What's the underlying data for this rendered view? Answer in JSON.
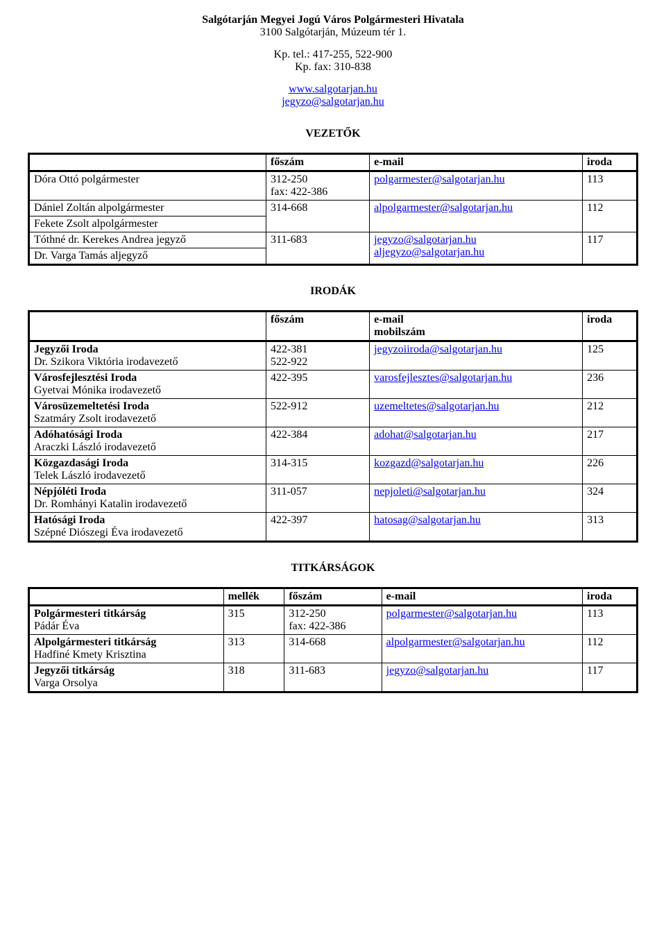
{
  "header": {
    "title": "Salgótarján Megyei Jogú Város Polgármesteri Hivatala",
    "address": "3100 Salgótarján, Múzeum tér 1.",
    "tel": "Kp. tel.: 417-255, 522-900",
    "fax": "Kp. fax: 310-838",
    "www": "www.salgotarjan.hu",
    "email": "jegyzo@salgotarjan.hu"
  },
  "sections": {
    "leaders": "VEZETŐK",
    "offices": "IRODÁK",
    "secretariats": "TITKÁRSÁGOK"
  },
  "labels": {
    "foszam": "főszám",
    "email": "e-mail",
    "iroda": "iroda",
    "mobil": "mobilszám",
    "mellek": "mellék"
  },
  "leaders": {
    "row1": {
      "name": "Dóra Ottó polgármester",
      "foszam1": "312-250",
      "foszam2": "fax: 422-386",
      "email": "polgarmester@salgotarjan.hu",
      "iroda": "113"
    },
    "row2a": "Dániel Zoltán alpolgármester",
    "row2b": "Fekete Zsolt alpolgármester",
    "row2": {
      "foszam": "314-668",
      "email": "alpolgarmester@salgotarjan.hu",
      "iroda": "112"
    },
    "row3a": "Tóthné dr. Kerekes Andrea jegyző",
    "row3b": "Dr. Varga Tamás  aljegyző",
    "row3": {
      "foszam": "311-683",
      "email1": "jegyzo@salgotarjan.hu",
      "email2": "aljegyzo@salgotarjan.hu",
      "iroda": "117"
    }
  },
  "offices": [
    {
      "name1": "Jegyzői Iroda",
      "name2": "Dr. Szikora Viktória irodavezető",
      "foszam1": "422-381",
      "foszam2": "522-922",
      "email": "jegyzoiiroda@salgotarjan.hu",
      "iroda": "125"
    },
    {
      "name1": "Városfejlesztési Iroda",
      "name2": "Gyetvai Mónika irodavezető",
      "foszam1": "422-395",
      "foszam2": "",
      "email": "varosfejlesztes@salgotarjan.hu",
      "iroda": "236"
    },
    {
      "name1": "Városüzemeltetési Iroda",
      "name2": "Szatmáry Zsolt irodavezető",
      "foszam1": "522-912",
      "foszam2": "",
      "email": "uzemeltetes@salgotarjan.hu",
      "iroda": "212"
    },
    {
      "name1": "Adóhatósági Iroda",
      "name2": "Araczki László irodavezető",
      "foszam1": "422-384",
      "foszam2": "",
      "email": "adohat@salgotarjan.hu",
      "iroda": "217"
    },
    {
      "name1": "Közgazdasági Iroda",
      "name2": "Telek László irodavezető",
      "foszam1": "314-315",
      "foszam2": "",
      "email": "kozgazd@salgotarjan.hu",
      "iroda": "226"
    },
    {
      "name1": "Népjóléti Iroda",
      "name2": "Dr. Romhányi Katalin irodavezető",
      "foszam1": "311-057",
      "foszam2": "",
      "email": "nepjoleti@salgotarjan.hu",
      "iroda": "324"
    },
    {
      "name1": "Hatósági Iroda",
      "name2": "Szépné Diószegi Éva irodavezető",
      "foszam1": "422-397",
      "foszam2": "",
      "email": "hatosag@salgotarjan.hu",
      "iroda": "313"
    }
  ],
  "secretariats": [
    {
      "name1": "Polgármesteri titkárság",
      "name2": "Pádár Éva",
      "mellek": "315",
      "foszam1": "312-250",
      "foszam2": "fax: 422-386",
      "email": "polgarmester@salgotarjan.hu",
      "iroda": "113"
    },
    {
      "name1": "Alpolgármesteri titkárság",
      "name2": "Hadfiné Kmety Krisztina",
      "mellek": "313",
      "foszam1": "314-668",
      "foszam2": "",
      "email": "alpolgarmester@salgotarjan.hu",
      "iroda": "112"
    },
    {
      "name1": "Jegyzői titkárság",
      "name2": "Varga Orsolya",
      "mellek": "318",
      "foszam1": "311-683",
      "foszam2": "",
      "email": "jegyzo@salgotarjan.hu",
      "iroda": "117"
    }
  ]
}
